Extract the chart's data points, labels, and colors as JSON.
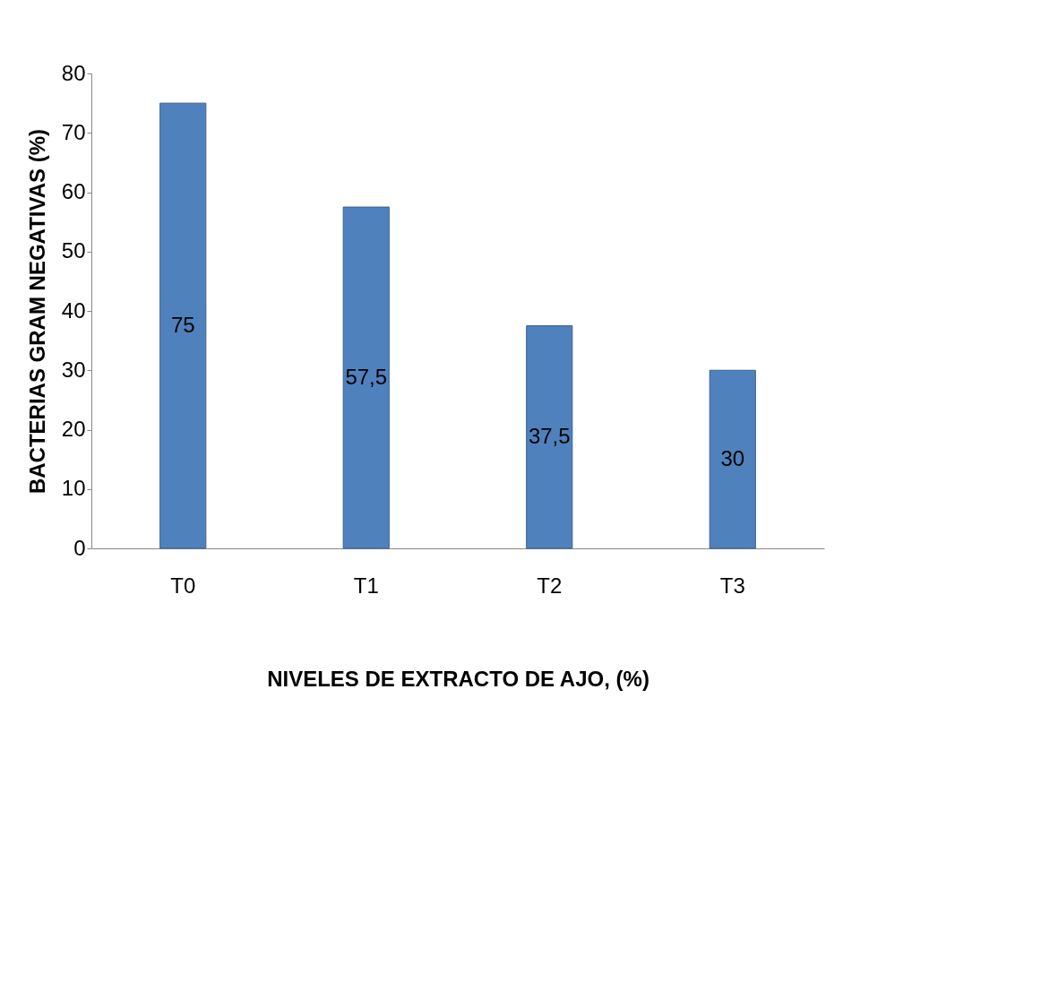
{
  "chart_data": {
    "type": "bar",
    "xlabel": "NIVELES DE EXTRACTO DE AJO, (%)",
    "ylabel": "BACTERIAS GRAM NEGATIVAS (%)",
    "categories": [
      "T0",
      "T1",
      "T2",
      "T3"
    ],
    "values": [
      75,
      57.5,
      37.5,
      30
    ],
    "value_labels": [
      "75",
      "57,5",
      "37,5",
      "30"
    ],
    "color": "#4f81bd",
    "ylim": [
      0,
      80
    ],
    "yticks": [
      0,
      10,
      20,
      30,
      40,
      50,
      60,
      70,
      80
    ],
    "grid": false
  }
}
